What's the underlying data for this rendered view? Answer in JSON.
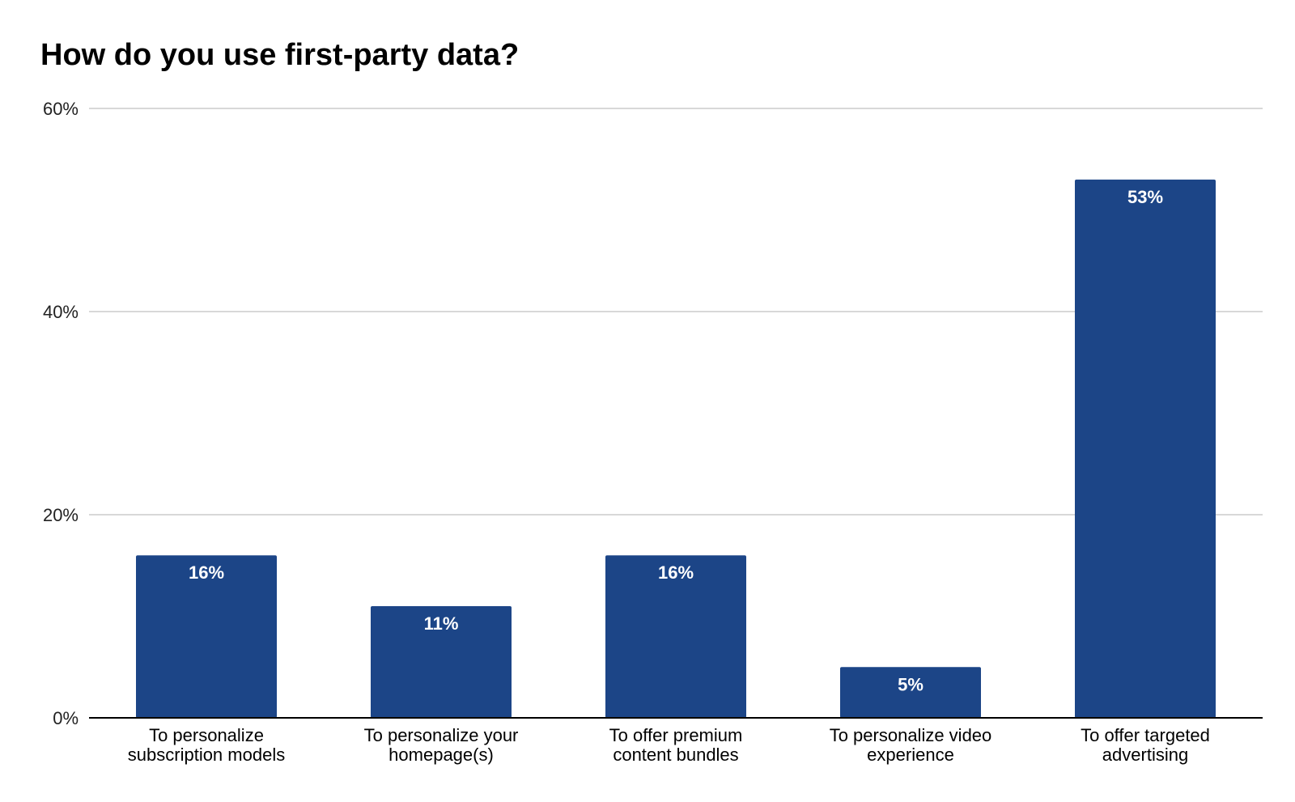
{
  "chart_data": {
    "type": "bar",
    "title": "How do you use first-party data?",
    "categories": [
      [
        "To personalize",
        "subscription models"
      ],
      [
        "To personalize your",
        "homepage(s)"
      ],
      [
        "To offer premium",
        "content bundles"
      ],
      [
        "To personalize video",
        "experience"
      ],
      [
        "To offer targeted",
        "advertising"
      ]
    ],
    "values": [
      16,
      11,
      16,
      5,
      53
    ],
    "data_labels": [
      "16%",
      "11%",
      "16%",
      "5%",
      "53%"
    ],
    "ylim": [
      0,
      60
    ],
    "yticks": [
      0,
      20,
      40,
      60
    ],
    "ytick_labels": [
      "0%",
      "20%",
      "40%",
      "60%"
    ],
    "grid": true,
    "bar_color": "#1c4587"
  }
}
